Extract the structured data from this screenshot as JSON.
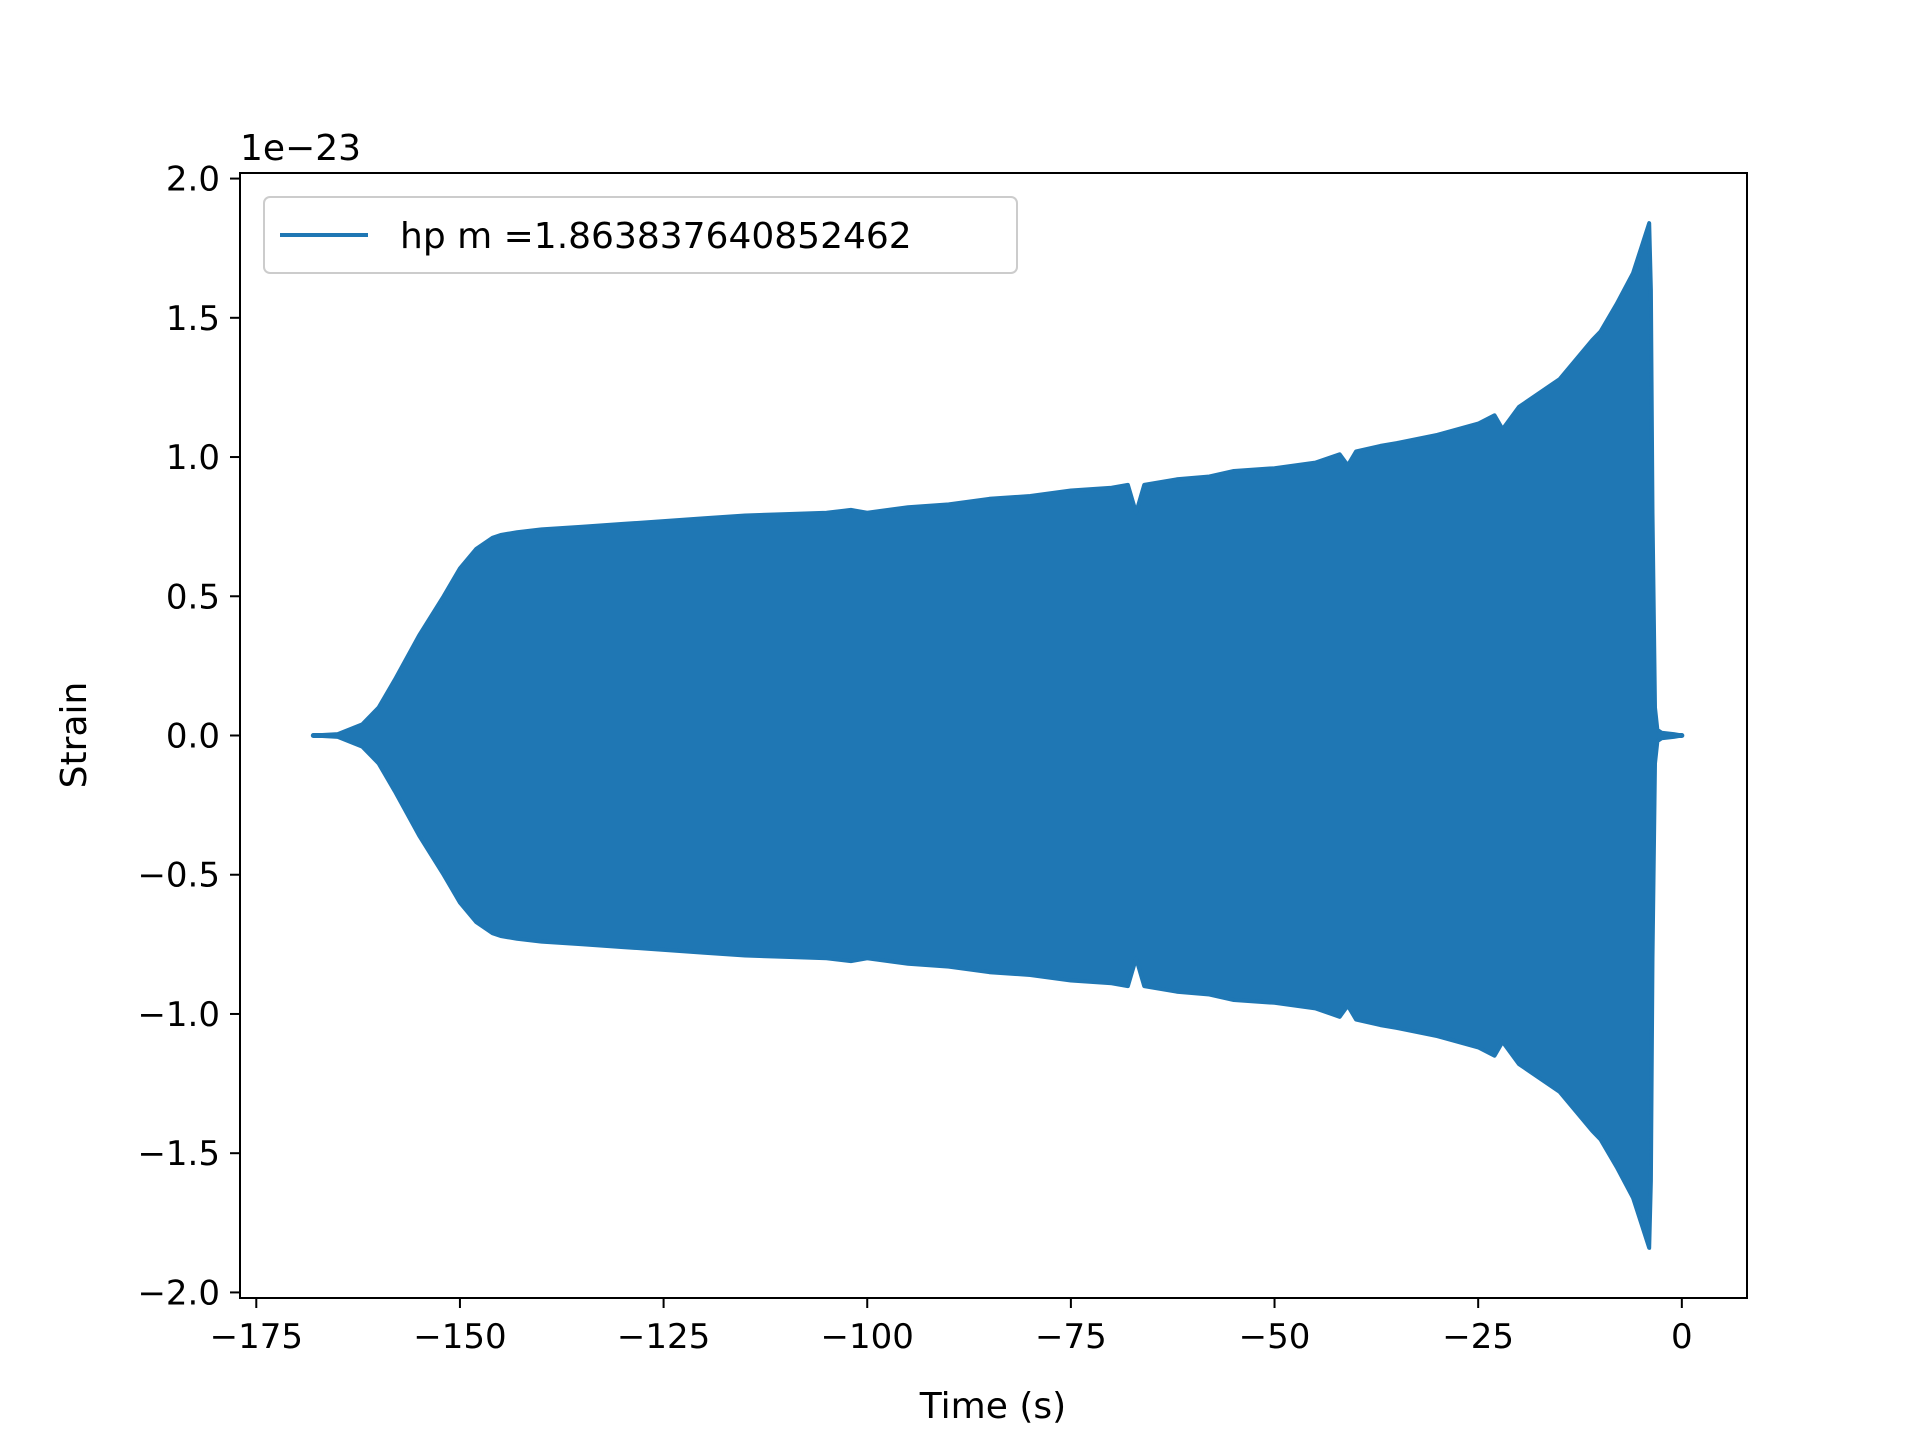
{
  "chart_data": {
    "type": "line",
    "xlabel": "Time (s)",
    "ylabel": "Strain",
    "y_offset_label": "1e−23",
    "y_scale_exponent": -23,
    "xlim": [
      -177,
      8
    ],
    "ylim": [
      -2.02,
      2.02
    ],
    "x_ticks": [
      -175,
      -150,
      -125,
      -100,
      -75,
      -50,
      -25,
      0
    ],
    "x_tick_labels": [
      "−175",
      "−150",
      "−125",
      "−100",
      "−75",
      "−50",
      "−25",
      "0"
    ],
    "y_ticks": [
      -2.0,
      -1.5,
      -1.0,
      -0.5,
      0.0,
      0.5,
      1.0,
      1.5,
      2.0
    ],
    "y_tick_labels": [
      "−2.0",
      "−1.5",
      "−1.0",
      "−0.5",
      "0.0",
      "0.5",
      "1.0",
      "1.5",
      "2.0"
    ],
    "grid": false,
    "legend_position": "top-left",
    "series": [
      {
        "name": "hp m =1.863837640852462",
        "color": "#1f77b4",
        "rendering": "dense oscillation filled between upper and lower envelope",
        "envelope": {
          "t": [
            -168,
            -165,
            -162,
            -160,
            -158,
            -155,
            -152,
            -150,
            -148,
            -146,
            -145,
            -143,
            -140,
            -135,
            -130,
            -125,
            -120,
            -115,
            -110,
            -105,
            -102,
            -100,
            -95,
            -90,
            -85,
            -80,
            -75,
            -70,
            -68,
            -67,
            -66,
            -62,
            -58,
            -55,
            -50,
            -45,
            -42,
            -41,
            -40,
            -37,
            -35,
            -30,
            -25,
            -23,
            -22,
            -20,
            -18,
            -15,
            -13,
            -11,
            -10,
            -8,
            -6,
            -5,
            -4,
            -3.8,
            -3.6,
            -3.3,
            -3,
            -2.5,
            -1,
            0
          ],
          "upper": [
            0.0,
            0.005,
            0.04,
            0.1,
            0.2,
            0.36,
            0.5,
            0.6,
            0.67,
            0.71,
            0.72,
            0.73,
            0.74,
            0.75,
            0.76,
            0.77,
            0.78,
            0.79,
            0.795,
            0.8,
            0.81,
            0.8,
            0.82,
            0.83,
            0.85,
            0.86,
            0.88,
            0.89,
            0.9,
            0.8,
            0.9,
            0.92,
            0.93,
            0.95,
            0.96,
            0.98,
            1.01,
            0.97,
            1.02,
            1.04,
            1.05,
            1.08,
            1.12,
            1.15,
            1.1,
            1.18,
            1.22,
            1.28,
            1.35,
            1.42,
            1.45,
            1.55,
            1.66,
            1.75,
            1.84,
            1.6,
            0.8,
            0.1,
            0.02,
            0.01,
            0.005,
            0.0
          ],
          "lower": [
            0.0,
            -0.005,
            -0.04,
            -0.1,
            -0.2,
            -0.36,
            -0.5,
            -0.6,
            -0.67,
            -0.71,
            -0.72,
            -0.73,
            -0.74,
            -0.75,
            -0.76,
            -0.77,
            -0.78,
            -0.79,
            -0.795,
            -0.8,
            -0.81,
            -0.8,
            -0.82,
            -0.83,
            -0.85,
            -0.86,
            -0.88,
            -0.89,
            -0.9,
            -0.8,
            -0.9,
            -0.92,
            -0.93,
            -0.95,
            -0.96,
            -0.98,
            -1.01,
            -0.97,
            -1.02,
            -1.04,
            -1.05,
            -1.08,
            -1.12,
            -1.15,
            -1.1,
            -1.18,
            -1.22,
            -1.28,
            -1.35,
            -1.42,
            -1.45,
            -1.55,
            -1.66,
            -1.75,
            -1.84,
            -1.6,
            -0.8,
            -0.1,
            -0.02,
            -0.01,
            -0.005,
            0.0
          ]
        }
      }
    ]
  }
}
